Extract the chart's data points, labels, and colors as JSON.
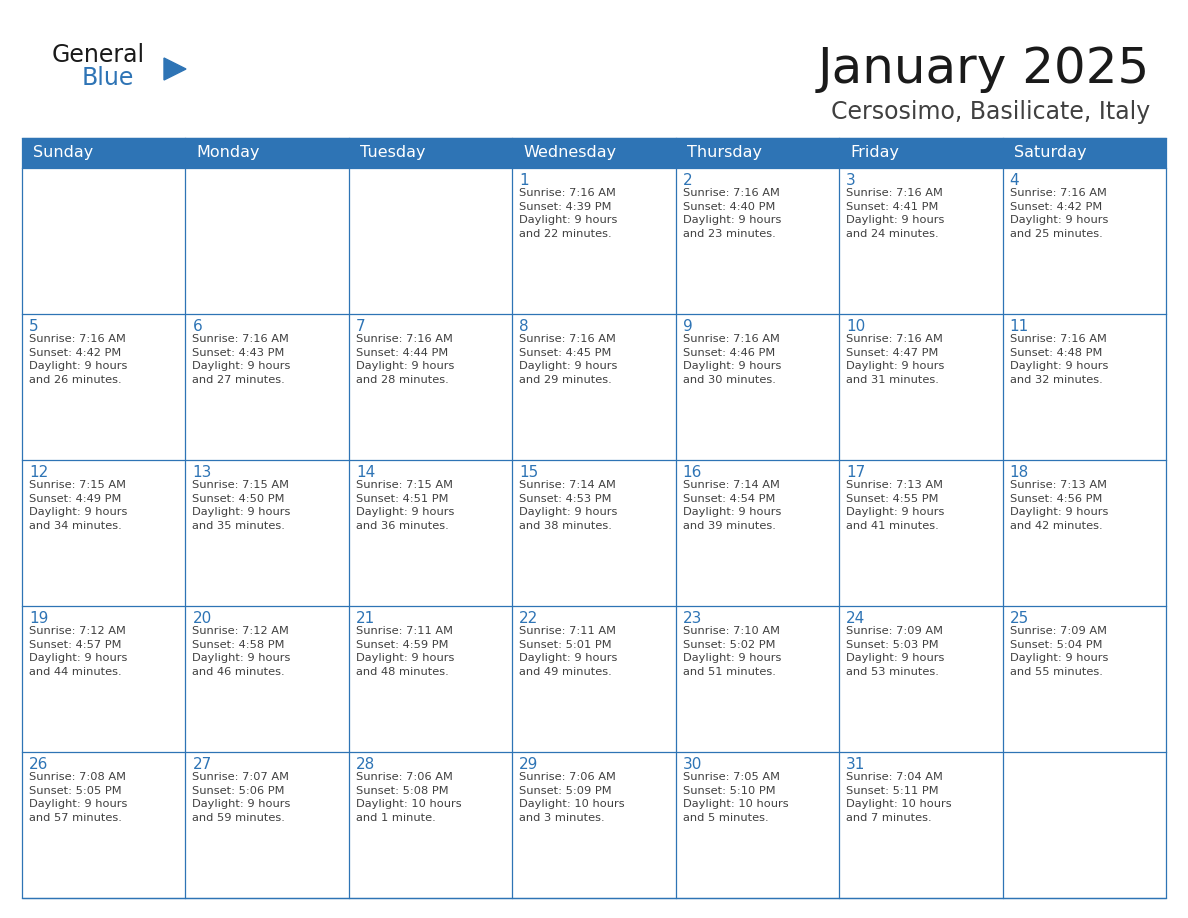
{
  "title": "January 2025",
  "subtitle": "Cersosimo, Basilicate, Italy",
  "header_bg": "#2E74B5",
  "header_text_color": "#FFFFFF",
  "cell_bg": "#FFFFFF",
  "cell_border_color": "#2E74B5",
  "day_number_color": "#2E74B5",
  "cell_text_color": "#404040",
  "days_of_week": [
    "Sunday",
    "Monday",
    "Tuesday",
    "Wednesday",
    "Thursday",
    "Friday",
    "Saturday"
  ],
  "logo_general_color": "#1a1a1a",
  "logo_blue_color": "#2E74B5",
  "title_color": "#1a1a1a",
  "subtitle_color": "#404040",
  "weeks": [
    [
      {
        "day": null,
        "text": ""
      },
      {
        "day": null,
        "text": ""
      },
      {
        "day": null,
        "text": ""
      },
      {
        "day": 1,
        "text": "Sunrise: 7:16 AM\nSunset: 4:39 PM\nDaylight: 9 hours\nand 22 minutes."
      },
      {
        "day": 2,
        "text": "Sunrise: 7:16 AM\nSunset: 4:40 PM\nDaylight: 9 hours\nand 23 minutes."
      },
      {
        "day": 3,
        "text": "Sunrise: 7:16 AM\nSunset: 4:41 PM\nDaylight: 9 hours\nand 24 minutes."
      },
      {
        "day": 4,
        "text": "Sunrise: 7:16 AM\nSunset: 4:42 PM\nDaylight: 9 hours\nand 25 minutes."
      }
    ],
    [
      {
        "day": 5,
        "text": "Sunrise: 7:16 AM\nSunset: 4:42 PM\nDaylight: 9 hours\nand 26 minutes."
      },
      {
        "day": 6,
        "text": "Sunrise: 7:16 AM\nSunset: 4:43 PM\nDaylight: 9 hours\nand 27 minutes."
      },
      {
        "day": 7,
        "text": "Sunrise: 7:16 AM\nSunset: 4:44 PM\nDaylight: 9 hours\nand 28 minutes."
      },
      {
        "day": 8,
        "text": "Sunrise: 7:16 AM\nSunset: 4:45 PM\nDaylight: 9 hours\nand 29 minutes."
      },
      {
        "day": 9,
        "text": "Sunrise: 7:16 AM\nSunset: 4:46 PM\nDaylight: 9 hours\nand 30 minutes."
      },
      {
        "day": 10,
        "text": "Sunrise: 7:16 AM\nSunset: 4:47 PM\nDaylight: 9 hours\nand 31 minutes."
      },
      {
        "day": 11,
        "text": "Sunrise: 7:16 AM\nSunset: 4:48 PM\nDaylight: 9 hours\nand 32 minutes."
      }
    ],
    [
      {
        "day": 12,
        "text": "Sunrise: 7:15 AM\nSunset: 4:49 PM\nDaylight: 9 hours\nand 34 minutes."
      },
      {
        "day": 13,
        "text": "Sunrise: 7:15 AM\nSunset: 4:50 PM\nDaylight: 9 hours\nand 35 minutes."
      },
      {
        "day": 14,
        "text": "Sunrise: 7:15 AM\nSunset: 4:51 PM\nDaylight: 9 hours\nand 36 minutes."
      },
      {
        "day": 15,
        "text": "Sunrise: 7:14 AM\nSunset: 4:53 PM\nDaylight: 9 hours\nand 38 minutes."
      },
      {
        "day": 16,
        "text": "Sunrise: 7:14 AM\nSunset: 4:54 PM\nDaylight: 9 hours\nand 39 minutes."
      },
      {
        "day": 17,
        "text": "Sunrise: 7:13 AM\nSunset: 4:55 PM\nDaylight: 9 hours\nand 41 minutes."
      },
      {
        "day": 18,
        "text": "Sunrise: 7:13 AM\nSunset: 4:56 PM\nDaylight: 9 hours\nand 42 minutes."
      }
    ],
    [
      {
        "day": 19,
        "text": "Sunrise: 7:12 AM\nSunset: 4:57 PM\nDaylight: 9 hours\nand 44 minutes."
      },
      {
        "day": 20,
        "text": "Sunrise: 7:12 AM\nSunset: 4:58 PM\nDaylight: 9 hours\nand 46 minutes."
      },
      {
        "day": 21,
        "text": "Sunrise: 7:11 AM\nSunset: 4:59 PM\nDaylight: 9 hours\nand 48 minutes."
      },
      {
        "day": 22,
        "text": "Sunrise: 7:11 AM\nSunset: 5:01 PM\nDaylight: 9 hours\nand 49 minutes."
      },
      {
        "day": 23,
        "text": "Sunrise: 7:10 AM\nSunset: 5:02 PM\nDaylight: 9 hours\nand 51 minutes."
      },
      {
        "day": 24,
        "text": "Sunrise: 7:09 AM\nSunset: 5:03 PM\nDaylight: 9 hours\nand 53 minutes."
      },
      {
        "day": 25,
        "text": "Sunrise: 7:09 AM\nSunset: 5:04 PM\nDaylight: 9 hours\nand 55 minutes."
      }
    ],
    [
      {
        "day": 26,
        "text": "Sunrise: 7:08 AM\nSunset: 5:05 PM\nDaylight: 9 hours\nand 57 minutes."
      },
      {
        "day": 27,
        "text": "Sunrise: 7:07 AM\nSunset: 5:06 PM\nDaylight: 9 hours\nand 59 minutes."
      },
      {
        "day": 28,
        "text": "Sunrise: 7:06 AM\nSunset: 5:08 PM\nDaylight: 10 hours\nand 1 minute."
      },
      {
        "day": 29,
        "text": "Sunrise: 7:06 AM\nSunset: 5:09 PM\nDaylight: 10 hours\nand 3 minutes."
      },
      {
        "day": 30,
        "text": "Sunrise: 7:05 AM\nSunset: 5:10 PM\nDaylight: 10 hours\nand 5 minutes."
      },
      {
        "day": 31,
        "text": "Sunrise: 7:04 AM\nSunset: 5:11 PM\nDaylight: 10 hours\nand 7 minutes."
      },
      {
        "day": null,
        "text": ""
      }
    ]
  ]
}
